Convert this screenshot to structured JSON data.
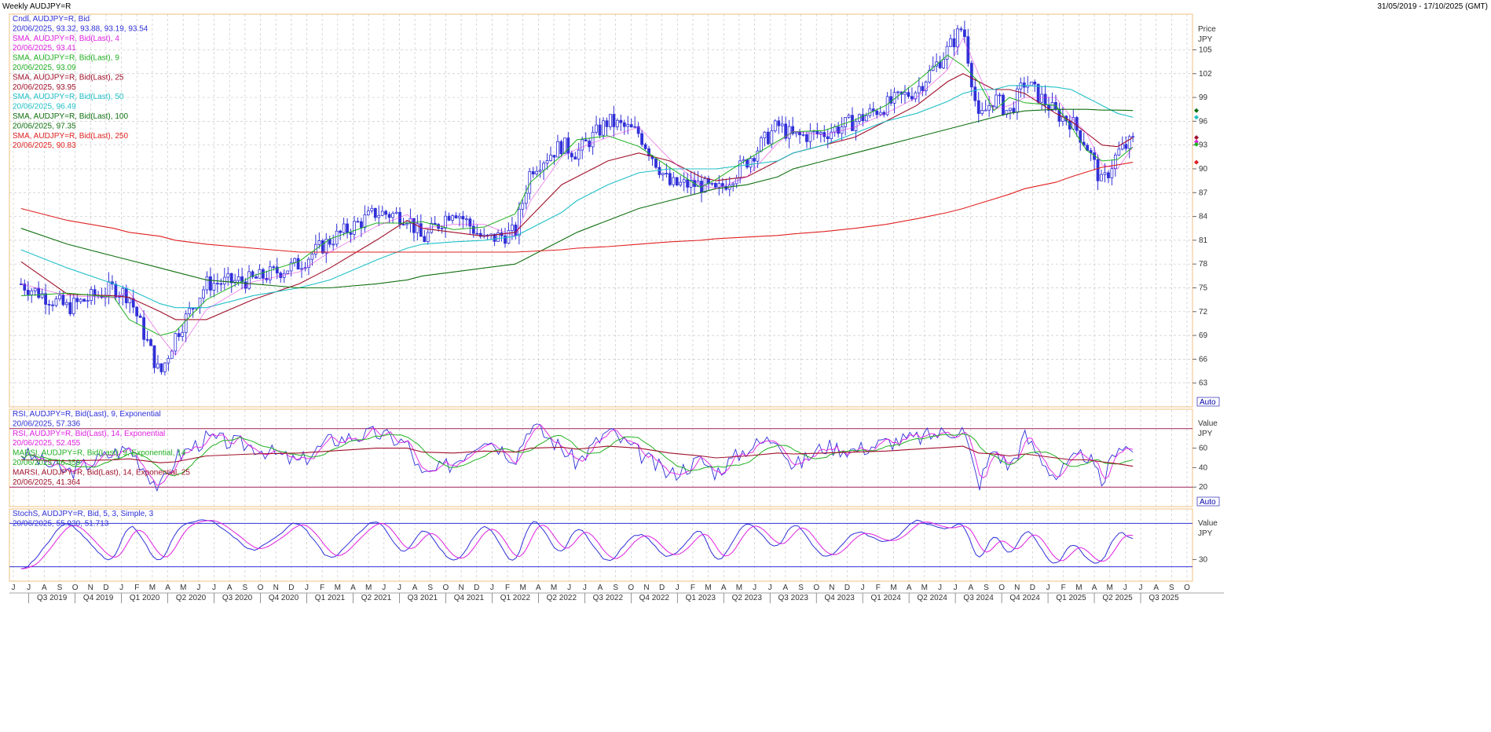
{
  "header": {
    "title": "Weekly AUDJPY=R",
    "range": "31/05/2019 - 17/10/2025 (GMT)"
  },
  "colors": {
    "candle": "#3030d8",
    "sma4": "#e020e0",
    "sma9": "#20b020",
    "sma25": "#a0102a",
    "sma50": "#20c0c8",
    "sma100": "#107010",
    "sma250": "#e02020",
    "grid": "#c8c8c8",
    "panel_border": "#f0c080"
  },
  "price_legend": [
    {
      "label": "Cndl, AUDJPY=R, Bid",
      "color": "#3030d8"
    },
    {
      "label": "20/06/2025, 93.32, 93.88, 93.19, 93.54",
      "color": "#3030d8"
    },
    {
      "label": "SMA, AUDJPY=R, Bid(Last),  4",
      "color": "#e020e0"
    },
    {
      "label": "20/06/2025, 93.41",
      "color": "#e020e0"
    },
    {
      "label": "SMA, AUDJPY=R, Bid(Last),  9",
      "color": "#20b020"
    },
    {
      "label": "20/06/2025, 93.09",
      "color": "#20b020"
    },
    {
      "label": "SMA, AUDJPY=R, Bid(Last),  25",
      "color": "#a0102a"
    },
    {
      "label": "20/06/2025, 93.95",
      "color": "#a0102a"
    },
    {
      "label": "SMA, AUDJPY=R, Bid(Last),  50",
      "color": "#20c0c8"
    },
    {
      "label": "20/06/2025, 96.49",
      "color": "#20c0c8"
    },
    {
      "label": "SMA, AUDJPY=R, Bid(Last),  100",
      "color": "#107010"
    },
    {
      "label": "20/06/2025, 97.35",
      "color": "#107010"
    },
    {
      "label": "SMA, AUDJPY=R, Bid(Last),  250",
      "color": "#e02020"
    },
    {
      "label": "20/06/2025, 90.83",
      "color": "#e02020"
    }
  ],
  "rsi_legend": [
    {
      "label": "RSI, AUDJPY=R, Bid(Last),  9, Exponential",
      "color": "#3030d8"
    },
    {
      "label": "20/06/2025, 57.336",
      "color": "#3030d8"
    },
    {
      "label": "RSI, AUDJPY=R, Bid(Last),  14, Exponential",
      "color": "#e020e0"
    },
    {
      "label": "20/06/2025, 52.455",
      "color": "#e020e0"
    },
    {
      "label": "MARSI, AUDJPY=R, Bid(Last),  9, Exponential, 14",
      "color": "#20b020"
    },
    {
      "label": "20/06/2025, 46.359",
      "color": "#20b020"
    },
    {
      "label": "MARSI, AUDJPY=R, Bid(Last),  14, Exponential, 25",
      "color": "#a0102a"
    },
    {
      "label": "20/06/2025, 41.364",
      "color": "#a0102a"
    }
  ],
  "stoch_legend": [
    {
      "label": "StochS, AUDJPY=R, Bid,  5, 3, Simple, 3",
      "color": "#3030d8"
    },
    {
      "label": "20/06/2025, 55.930, 51.713",
      "color": "#3030d8"
    }
  ],
  "price_axis": {
    "title": "Price",
    "unit": "JPY",
    "ticks": [
      63,
      66,
      69,
      72,
      75,
      78,
      81,
      84,
      87,
      90,
      93,
      96,
      99,
      102,
      105
    ],
    "ylim": [
      60,
      109.5
    ],
    "auto": "Auto"
  },
  "rsi_axis": {
    "title": "Value",
    "unit": "JPY",
    "ticks": [
      20,
      40,
      60
    ],
    "ylim": [
      0,
      100
    ],
    "auto": "Auto"
  },
  "stoch_axis": {
    "title": "Value",
    "unit": "JPY",
    "ticks": [
      30
    ],
    "ylim": [
      0,
      100
    ]
  },
  "time_axis": {
    "months": [
      "J",
      "J",
      "A",
      "S",
      "O",
      "N",
      "D",
      "J",
      "F",
      "M",
      "A",
      "M",
      "J",
      "J",
      "A",
      "S",
      "O",
      "N",
      "D",
      "J",
      "F",
      "M",
      "A",
      "M",
      "J",
      "J",
      "A",
      "S",
      "O",
      "N",
      "D",
      "J",
      "F",
      "M",
      "A",
      "M",
      "J",
      "J",
      "A",
      "S",
      "O",
      "N",
      "D",
      "J",
      "F",
      "M",
      "A",
      "M",
      "J",
      "J",
      "A",
      "S",
      "O",
      "N",
      "D",
      "J",
      "F",
      "M",
      "A",
      "M",
      "J",
      "J",
      "A",
      "S",
      "O",
      "N",
      "D",
      "J",
      "F",
      "M",
      "A",
      "M",
      "J",
      "J",
      "A",
      "S",
      "O"
    ],
    "quarters": [
      "Q3 2019",
      "Q4 2019",
      "Q1 2020",
      "Q2 2020",
      "Q3 2020",
      "Q4 2020",
      "Q1 2021",
      "Q2 2021",
      "Q3 2021",
      "Q4 2021",
      "Q1 2022",
      "Q2 2022",
      "Q3 2022",
      "Q4 2022",
      "Q1 2023",
      "Q2 2023",
      "Q3 2023",
      "Q4 2023",
      "Q1 2024",
      "Q2 2024",
      "Q3 2024",
      "Q4 2024",
      "Q1 2025",
      "Q2 2025",
      "Q3 2025"
    ]
  },
  "chart_data": [
    {
      "type": "line",
      "title": "Weekly AUDJPY=R",
      "ylabel": "Price JPY",
      "ylim": [
        60,
        109.5
      ],
      "x": [
        "2019-06",
        "2019-09",
        "2019-12",
        "2020-01",
        "2020-03",
        "2020-04",
        "2020-06",
        "2020-09",
        "2020-12",
        "2021-02",
        "2021-05",
        "2021-07",
        "2021-08",
        "2021-10",
        "2021-12",
        "2022-02",
        "2022-03",
        "2022-05",
        "2022-06",
        "2022-08",
        "2022-10",
        "2022-12",
        "2023-02",
        "2023-03",
        "2023-05",
        "2023-07",
        "2023-08",
        "2023-10",
        "2023-12",
        "2024-02",
        "2024-04",
        "2024-06",
        "2024-07",
        "2024-08",
        "2024-09",
        "2024-10",
        "2024-11",
        "2025-01",
        "2025-02",
        "2025-03",
        "2025-04",
        "2025-05",
        "2025-06"
      ],
      "series": [
        {
          "name": "Cndl, AUDJPY=R, Bid",
          "values": [
            75.5,
            72.5,
            75,
            74,
            64,
            69,
            75.5,
            76,
            78,
            81,
            84.5,
            84,
            81,
            85,
            81,
            82,
            90,
            93,
            92,
            96,
            94.5,
            88,
            88,
            87,
            91,
            95.5,
            94,
            94.5,
            96,
            98,
            100,
            105,
            108,
            96,
            99,
            97,
            101,
            97,
            96,
            93,
            88,
            92,
            93.5
          ]
        },
        {
          "name": "SMA, AUDJPY=R, Bid(Last),  25",
          "values": [
            78.3,
            74.2,
            74,
            73.8,
            72,
            71,
            71,
            73.5,
            75.5,
            77.5,
            81,
            83.5,
            82.5,
            82,
            81.5,
            82,
            84,
            88,
            89,
            91,
            92,
            91,
            89,
            88.5,
            89,
            91,
            92,
            93,
            94,
            96,
            98,
            101,
            102,
            101,
            100,
            100,
            99.5,
            97,
            96,
            94.5,
            93,
            92.8,
            93.95
          ]
        },
        {
          "name": "SMA, AUDJPY=R, Bid(Last),  50",
          "values": [
            79.8,
            77.5,
            75.5,
            74.8,
            73,
            72.5,
            72.5,
            74,
            75,
            76,
            78.5,
            80,
            80.5,
            80.8,
            81,
            81.5,
            82.5,
            84.5,
            86,
            88,
            89.5,
            90,
            90,
            90,
            90.5,
            91,
            92,
            93,
            94.5,
            96,
            97,
            98.5,
            99.5,
            100,
            100,
            100.5,
            100.5,
            100.3,
            100,
            99,
            98,
            97,
            96.49
          ]
        },
        {
          "name": "SMA, AUDJPY=R, Bid(Last),  100",
          "values": [
            82.5,
            80.5,
            79,
            78.5,
            77.5,
            77,
            76,
            75.5,
            75,
            75,
            75.5,
            76,
            76.5,
            77,
            77.5,
            78,
            79,
            81,
            82,
            83.5,
            85,
            86,
            87,
            87.5,
            88,
            89,
            90,
            91,
            92,
            93,
            94,
            95,
            95.5,
            96,
            96.5,
            97,
            97.3,
            97.5,
            97.5,
            97.5,
            97.4,
            97.4,
            97.35
          ]
        },
        {
          "name": "SMA, AUDJPY=R, Bid(Last),  250",
          "values": [
            85,
            83.5,
            82.5,
            82,
            81.5,
            81,
            80.5,
            80,
            79.5,
            79.5,
            79.5,
            79.5,
            79.5,
            79.5,
            79.5,
            79.5,
            79.6,
            79.8,
            80,
            80.2,
            80.5,
            80.8,
            81,
            81.2,
            81.4,
            81.6,
            81.8,
            82.1,
            82.5,
            83,
            83.7,
            84.5,
            85,
            85.6,
            86.2,
            86.8,
            87.5,
            88.3,
            89,
            89.6,
            90.2,
            90.5,
            90.83
          ]
        }
      ],
      "current": {
        "date": "20/06/2025",
        "open": 93.32,
        "high": 93.88,
        "low": 93.19,
        "close": 93.54,
        "sma4": 93.41,
        "sma9": 93.09
      }
    },
    {
      "type": "line",
      "title": "RSI",
      "ylim": [
        0,
        100
      ],
      "reference_lines": [
        20,
        80
      ],
      "series": [
        {
          "name": "RSI, AUDJPY=R, Bid(Last),  9, Exponential",
          "values": [
            55,
            35,
            55,
            60,
            18,
            50,
            70,
            62,
            45,
            68,
            75,
            65,
            30,
            45,
            72,
            50,
            85,
            60,
            45,
            78,
            55,
            32,
            48,
            35,
            60,
            72,
            40,
            62,
            58,
            66,
            70,
            77,
            80,
            22,
            60,
            40,
            72,
            30,
            45,
            55,
            22,
            65,
            57.336
          ]
        },
        {
          "name": "MARSI, AUDJPY=R, Bid(Last),  14, Exponential, 25",
          "values": [
            48,
            47,
            48,
            49,
            45,
            46,
            52,
            54,
            55,
            57,
            60,
            60,
            56,
            55,
            57,
            56,
            60,
            61,
            59,
            62,
            60,
            55,
            52,
            50,
            52,
            55,
            54,
            55,
            56,
            57,
            59,
            61,
            62,
            55,
            54,
            52,
            54,
            50,
            48,
            48,
            46,
            44,
            41.364
          ]
        }
      ]
    },
    {
      "type": "line",
      "title": "StochS",
      "ylim": [
        0,
        100
      ],
      "reference_lines": [
        20,
        80
      ],
      "series": [
        {
          "name": "StochS, AUDJPY=R, Bid,  5, 3, Simple, 3",
          "values": [
            10,
            85,
            20,
            90,
            15,
            70,
            90,
            40,
            85,
            25,
            90,
            30,
            80,
            20,
            85,
            15,
            95,
            30,
            85,
            20,
            75,
            25,
            80,
            15,
            90,
            40,
            85,
            30,
            70,
            50,
            85,
            70,
            90,
            15,
            75,
            30,
            80,
            15,
            60,
            30,
            20,
            75,
            55.93
          ]
        }
      ]
    }
  ]
}
